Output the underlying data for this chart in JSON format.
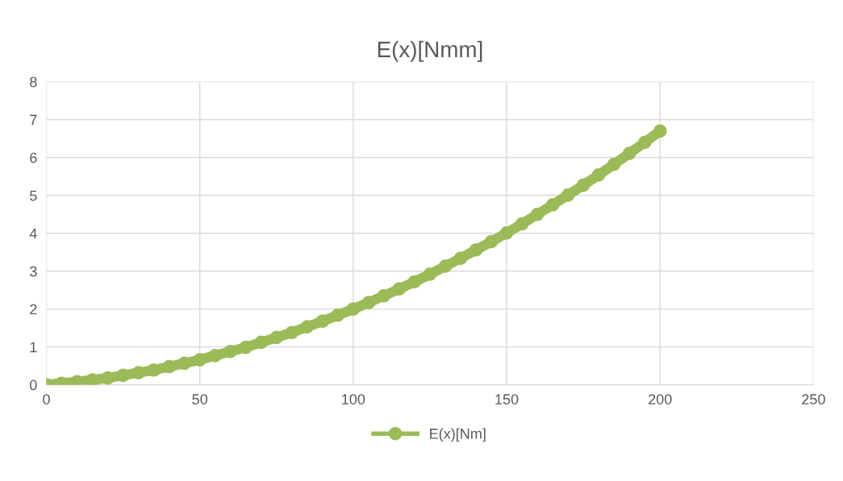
{
  "chart_data": {
    "type": "line",
    "title": "E(x)[Nmm]",
    "x": [
      0,
      5,
      10,
      15,
      20,
      25,
      30,
      35,
      40,
      45,
      50,
      55,
      60,
      65,
      70,
      75,
      80,
      85,
      90,
      95,
      100,
      105,
      110,
      115,
      120,
      125,
      130,
      135,
      140,
      145,
      150,
      155,
      160,
      165,
      170,
      175,
      180,
      185,
      190,
      195,
      200
    ],
    "series": [
      {
        "name": "E(x)[Nm]",
        "color": "#9bbb59",
        "values": [
          0,
          0.04,
          0.08,
          0.13,
          0.18,
          0.25,
          0.32,
          0.39,
          0.48,
          0.57,
          0.66,
          0.77,
          0.88,
          0.99,
          1.12,
          1.25,
          1.38,
          1.53,
          1.68,
          1.84,
          2.0,
          2.17,
          2.35,
          2.53,
          2.72,
          2.92,
          3.13,
          3.34,
          3.56,
          3.78,
          4.01,
          4.25,
          4.5,
          4.75,
          5.01,
          5.27,
          5.54,
          5.82,
          6.11,
          6.4,
          6.7
        ]
      }
    ],
    "xlim": [
      0,
      250
    ],
    "xticks": [
      0,
      50,
      100,
      150,
      200,
      250
    ],
    "ylim": [
      0,
      8
    ],
    "yticks": [
      0,
      1,
      2,
      3,
      4,
      5,
      6,
      7,
      8
    ],
    "grid": true,
    "legend": "bottom",
    "marker": "circle",
    "line_style": "solid"
  }
}
